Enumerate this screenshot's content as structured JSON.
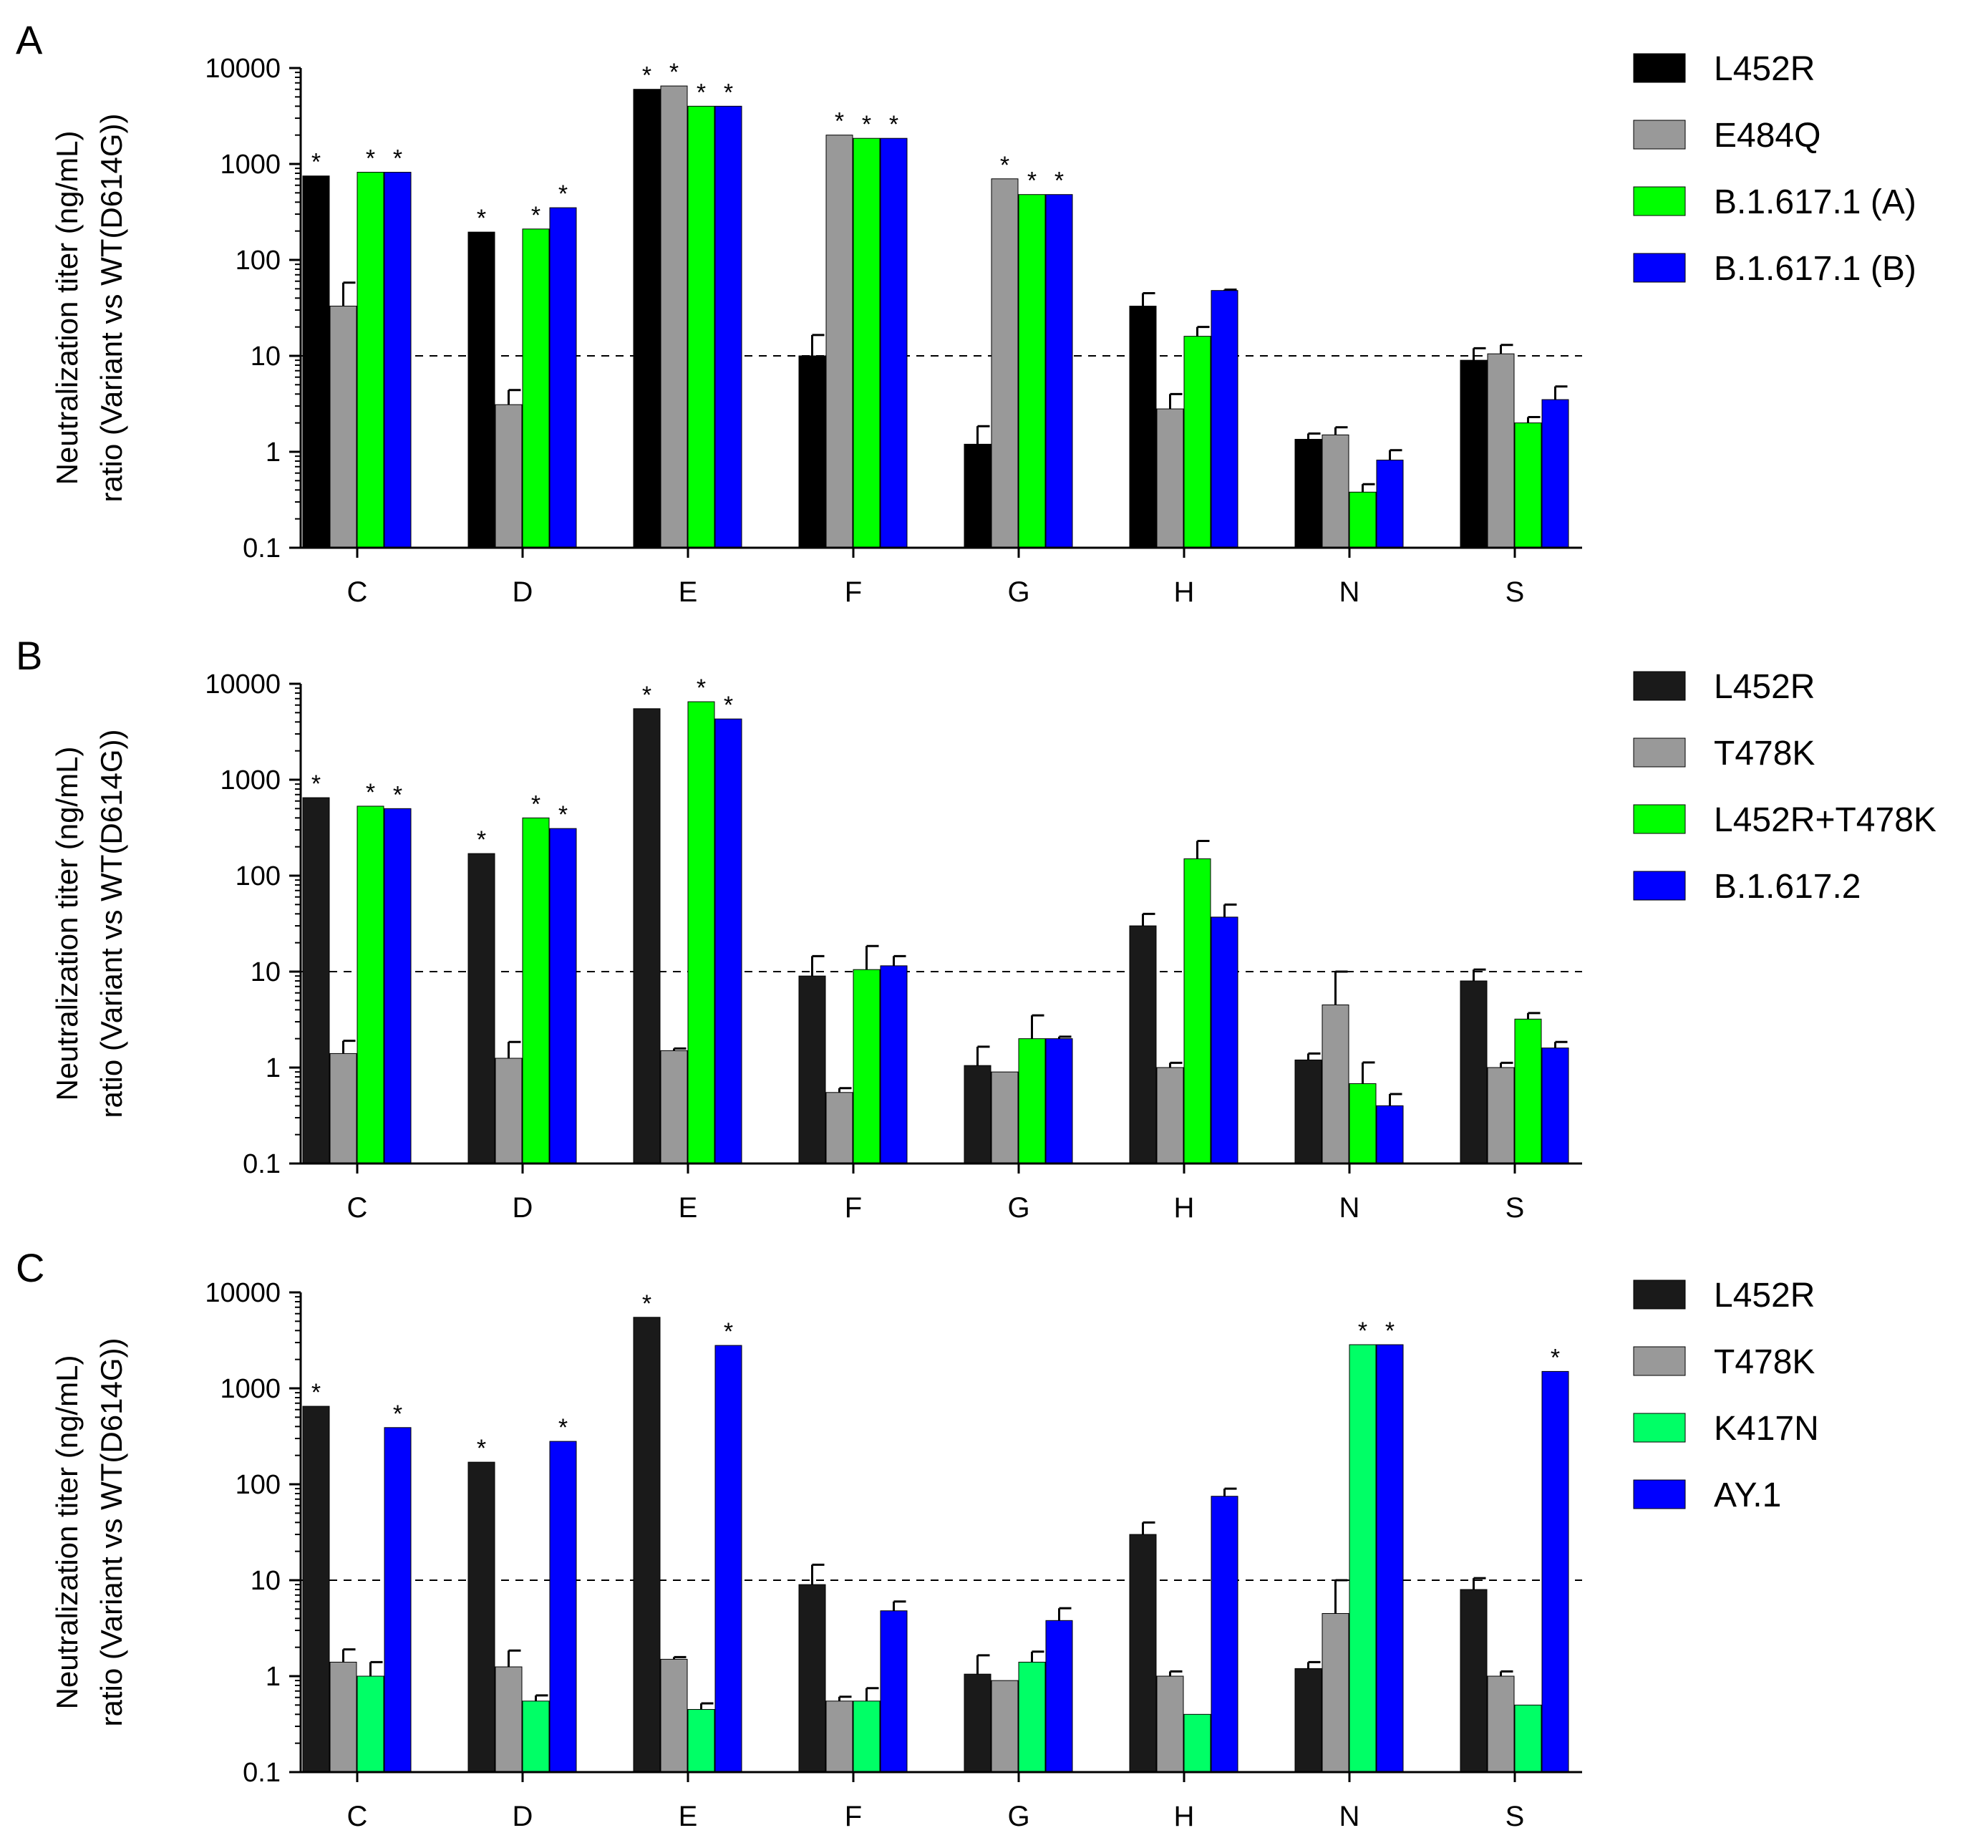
{
  "figure": {
    "threshold": 10,
    "ylabel_lines": [
      "Neutralization titer (ng/mL)",
      "ratio (Variant vs WT(D614G))"
    ],
    "panel_letters": [
      "A",
      "B",
      "C"
    ]
  },
  "chart_data": [
    {
      "type": "bar",
      "panel": "A",
      "yscale": "log",
      "ylim": [
        0.1,
        10000
      ],
      "yticks": [
        "0.1",
        "1",
        "10",
        "100",
        "1000",
        "10000"
      ],
      "ylabel": "Neutralization titer (ng/mL) ratio (Variant vs WT(D614G))",
      "reference_line": 10,
      "legend_position": "right",
      "categories": [
        "C",
        "D",
        "E",
        "F",
        "G",
        "H",
        "N",
        "S"
      ],
      "series": [
        {
          "name": "L452R",
          "color": "#000000",
          "values": [
            750,
            195,
            6000,
            10,
            1.2,
            33,
            1.35,
            9
          ],
          "errors": [
            0,
            0,
            0,
            6.5,
            0.65,
            12,
            0.2,
            3
          ],
          "significant": [
            true,
            true,
            true,
            false,
            false,
            false,
            false,
            false
          ]
        },
        {
          "name": "E484Q",
          "color": "#999999",
          "values": [
            33,
            3.1,
            6500,
            2000,
            700,
            2.8,
            1.5,
            10.5
          ],
          "errors": [
            25,
            1.3,
            0,
            0,
            0,
            1.2,
            0.3,
            2.5
          ],
          "significant": [
            false,
            false,
            true,
            true,
            true,
            false,
            false,
            false
          ]
        },
        {
          "name": "B.1.617.1 (A)",
          "color": "#00ff00",
          "values": [
            820,
            210,
            4000,
            1850,
            480,
            16,
            0.38,
            2
          ],
          "errors": [
            0,
            0,
            0,
            0,
            0,
            4,
            0.08,
            0.3
          ],
          "significant": [
            true,
            true,
            true,
            true,
            true,
            false,
            false,
            false
          ]
        },
        {
          "name": "B.1.617.1 (B)",
          "color": "#0000ff",
          "values": [
            820,
            350,
            4000,
            1850,
            480,
            48,
            0.82,
            3.5
          ],
          "errors": [
            0,
            0,
            0,
            0,
            0,
            1,
            0.22,
            1.3
          ],
          "significant": [
            true,
            true,
            true,
            true,
            true,
            false,
            false,
            false
          ]
        }
      ]
    },
    {
      "type": "bar",
      "panel": "B",
      "yscale": "log",
      "ylim": [
        0.1,
        10000
      ],
      "yticks": [
        "0.1",
        "1",
        "10",
        "100",
        "1000",
        "10000"
      ],
      "ylabel": "Neutralization titer (ng/mL) ratio (Variant vs WT(D614G))",
      "reference_line": 10,
      "legend_position": "right",
      "categories": [
        "C",
        "D",
        "E",
        "F",
        "G",
        "H",
        "N",
        "S"
      ],
      "series": [
        {
          "name": "L452R",
          "color": "#1a1a1a",
          "values": [
            650,
            170,
            5500,
            9,
            1.05,
            30,
            1.2,
            8
          ],
          "errors": [
            0,
            0,
            0,
            5.5,
            0.6,
            10,
            0.2,
            2.5
          ],
          "significant": [
            true,
            true,
            true,
            false,
            false,
            false,
            false,
            false
          ]
        },
        {
          "name": "T478K",
          "color": "#999999",
          "values": [
            1.4,
            1.25,
            1.5,
            0.55,
            0.9,
            1.0,
            4.5,
            1.0
          ],
          "errors": [
            0.5,
            0.6,
            0.08,
            0.06,
            0,
            0.12,
            5.5,
            0.12
          ],
          "significant": [
            false,
            false,
            false,
            false,
            false,
            false,
            false,
            false
          ]
        },
        {
          "name": "L452R+T478K",
          "color": "#00ff00",
          "values": [
            530,
            400,
            6500,
            10.5,
            2,
            150,
            0.68,
            3.2
          ],
          "errors": [
            0,
            0,
            0,
            8,
            1.5,
            80,
            0.45,
            0.5
          ],
          "significant": [
            true,
            true,
            true,
            false,
            false,
            false,
            false,
            false
          ]
        },
        {
          "name": "B.1.617.2",
          "color": "#0000ff",
          "values": [
            500,
            310,
            4300,
            11.5,
            2,
            37,
            0.4,
            1.6
          ],
          "errors": [
            0,
            0,
            0,
            3,
            0.1,
            13,
            0.13,
            0.25
          ],
          "significant": [
            true,
            true,
            true,
            false,
            false,
            false,
            false,
            false
          ]
        }
      ]
    },
    {
      "type": "bar",
      "panel": "C",
      "yscale": "log",
      "ylim": [
        0.1,
        10000
      ],
      "yticks": [
        "0.1",
        "1",
        "10",
        "100",
        "1000",
        "10000"
      ],
      "ylabel": "Neutralization titer (ng/mL) ratio (Variant vs WT(D614G))",
      "reference_line": 10,
      "legend_position": "right",
      "categories": [
        "C",
        "D",
        "E",
        "F",
        "G",
        "H",
        "N",
        "S"
      ],
      "series": [
        {
          "name": "L452R",
          "color": "#1a1a1a",
          "values": [
            650,
            170,
            5500,
            9,
            1.05,
            30,
            1.2,
            8
          ],
          "errors": [
            0,
            0,
            0,
            5.5,
            0.6,
            10,
            0.2,
            2.5
          ],
          "significant": [
            true,
            true,
            true,
            false,
            false,
            false,
            false,
            false
          ]
        },
        {
          "name": "T478K",
          "color": "#999999",
          "values": [
            1.4,
            1.25,
            1.5,
            0.55,
            0.9,
            1.0,
            4.5,
            1.0
          ],
          "errors": [
            0.5,
            0.6,
            0.08,
            0.06,
            0,
            0.12,
            5.5,
            0.12
          ],
          "significant": [
            false,
            false,
            false,
            false,
            false,
            false,
            false,
            false
          ]
        },
        {
          "name": "K417N",
          "color": "#00ff66",
          "values": [
            1.0,
            0.55,
            0.45,
            0.55,
            1.4,
            0.4,
            2850,
            0.5
          ],
          "errors": [
            0.4,
            0.08,
            0.07,
            0.2,
            0.4,
            0,
            0,
            0
          ],
          "significant": [
            false,
            false,
            false,
            false,
            false,
            false,
            true,
            false
          ]
        },
        {
          "name": "AY.1",
          "color": "#0000ff",
          "values": [
            390,
            280,
            2800,
            4.8,
            3.8,
            75,
            2850,
            1500
          ],
          "errors": [
            0,
            0,
            0,
            1.2,
            1.3,
            15,
            0,
            0
          ],
          "significant": [
            true,
            true,
            true,
            false,
            false,
            false,
            true,
            true
          ]
        }
      ]
    }
  ]
}
